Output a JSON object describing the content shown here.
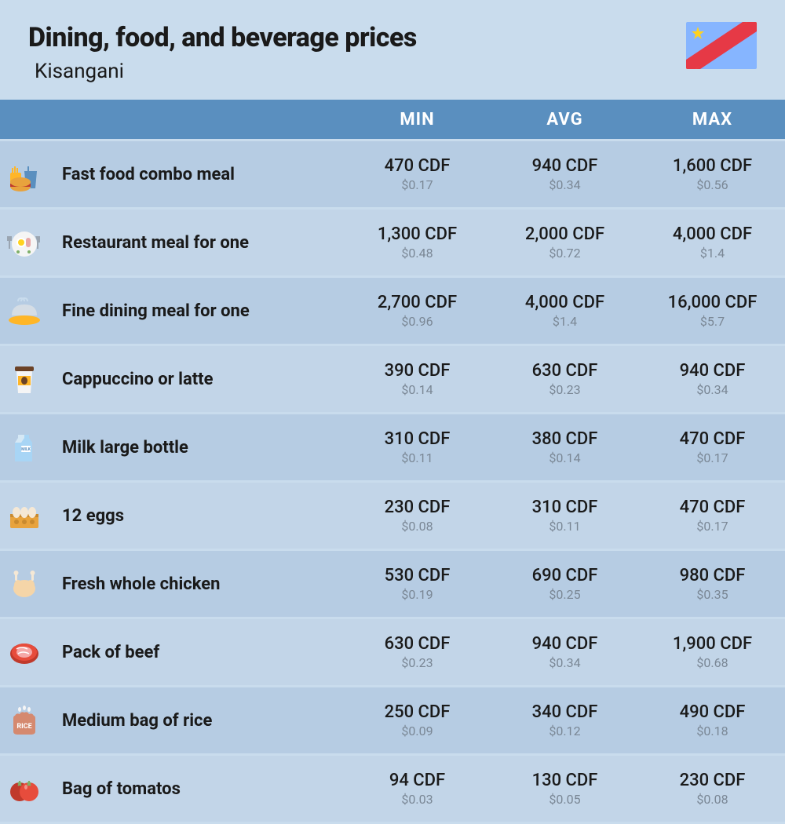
{
  "header": {
    "title": "Dining, food, and beverage prices",
    "subtitle": "Kisangani"
  },
  "columns": [
    "MIN",
    "AVG",
    "MAX"
  ],
  "colors": {
    "page_bg": "#c9dced",
    "header_bg": "#5a8fbf",
    "row_bg_a": "#b6cce3",
    "row_bg_b": "#c2d5e8",
    "text_primary": "#1a1a1a",
    "text_secondary": "#7a8795",
    "header_text": "#ffffff"
  },
  "flag": {
    "bg": "#86b5ff",
    "star": "#ffd21f",
    "stripe_outer": "#e63946",
    "stripe_inner": "#ffd21f"
  },
  "rows": [
    {
      "icon": "fast-food",
      "label": "Fast food combo meal",
      "min_p": "470 CDF",
      "min_s": "$0.17",
      "avg_p": "940 CDF",
      "avg_s": "$0.34",
      "max_p": "1,600 CDF",
      "max_s": "$0.56"
    },
    {
      "icon": "restaurant",
      "label": "Restaurant meal for one",
      "min_p": "1,300 CDF",
      "min_s": "$0.48",
      "avg_p": "2,000 CDF",
      "avg_s": "$0.72",
      "max_p": "4,000 CDF",
      "max_s": "$1.4"
    },
    {
      "icon": "fine-dining",
      "label": "Fine dining meal for one",
      "min_p": "2,700 CDF",
      "min_s": "$0.96",
      "avg_p": "4,000 CDF",
      "avg_s": "$1.4",
      "max_p": "16,000 CDF",
      "max_s": "$5.7"
    },
    {
      "icon": "coffee",
      "label": "Cappuccino or latte",
      "min_p": "390 CDF",
      "min_s": "$0.14",
      "avg_p": "630 CDF",
      "avg_s": "$0.23",
      "max_p": "940 CDF",
      "max_s": "$0.34"
    },
    {
      "icon": "milk",
      "label": "Milk large bottle",
      "min_p": "310 CDF",
      "min_s": "$0.11",
      "avg_p": "380 CDF",
      "avg_s": "$0.14",
      "max_p": "470 CDF",
      "max_s": "$0.17"
    },
    {
      "icon": "eggs",
      "label": "12 eggs",
      "min_p": "230 CDF",
      "min_s": "$0.08",
      "avg_p": "310 CDF",
      "avg_s": "$0.11",
      "max_p": "470 CDF",
      "max_s": "$0.17"
    },
    {
      "icon": "chicken",
      "label": "Fresh whole chicken",
      "min_p": "530 CDF",
      "min_s": "$0.19",
      "avg_p": "690 CDF",
      "avg_s": "$0.25",
      "max_p": "980 CDF",
      "max_s": "$0.35"
    },
    {
      "icon": "beef",
      "label": "Pack of beef",
      "min_p": "630 CDF",
      "min_s": "$0.23",
      "avg_p": "940 CDF",
      "avg_s": "$0.34",
      "max_p": "1,900 CDF",
      "max_s": "$0.68"
    },
    {
      "icon": "rice",
      "label": "Medium bag of rice",
      "min_p": "250 CDF",
      "min_s": "$0.09",
      "avg_p": "340 CDF",
      "avg_s": "$0.12",
      "max_p": "490 CDF",
      "max_s": "$0.18"
    },
    {
      "icon": "tomatoes",
      "label": "Bag of tomatos",
      "min_p": "94 CDF",
      "min_s": "$0.03",
      "avg_p": "130 CDF",
      "avg_s": "$0.05",
      "max_p": "230 CDF",
      "max_s": "$0.08"
    }
  ]
}
